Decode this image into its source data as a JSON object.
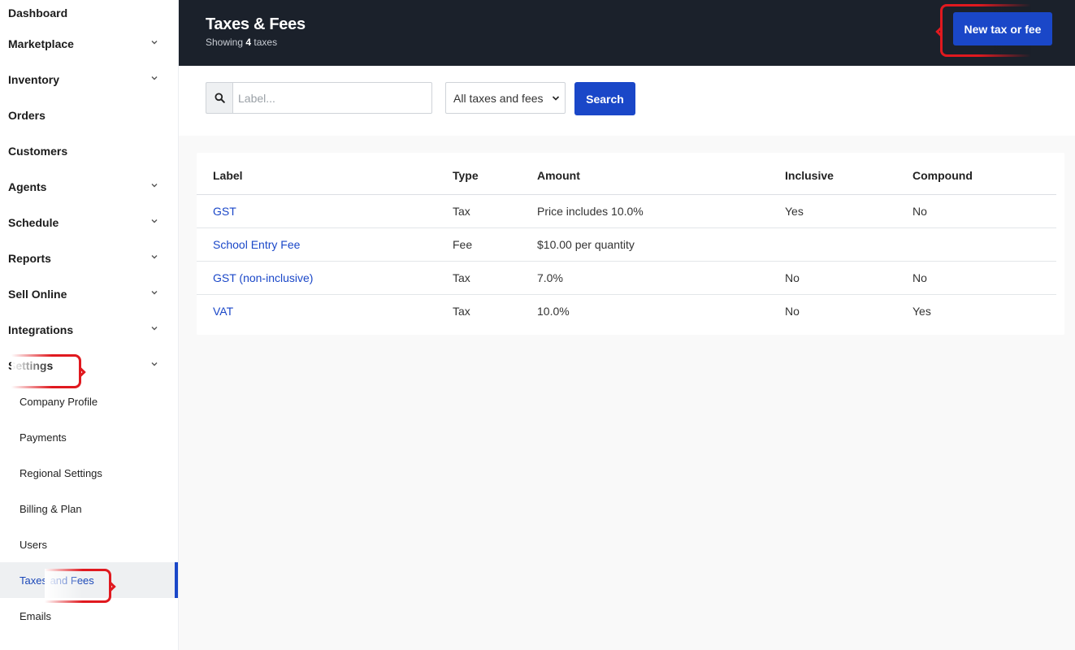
{
  "sidebar": {
    "items": [
      {
        "label": "Dashboard",
        "has_chevron": false
      },
      {
        "label": "Marketplace",
        "has_chevron": true
      },
      {
        "label": "Inventory",
        "has_chevron": true
      },
      {
        "label": "Orders",
        "has_chevron": false
      },
      {
        "label": "Customers",
        "has_chevron": false
      },
      {
        "label": "Agents",
        "has_chevron": true
      },
      {
        "label": "Schedule",
        "has_chevron": true
      },
      {
        "label": "Reports",
        "has_chevron": true
      },
      {
        "label": "Sell Online",
        "has_chevron": true
      },
      {
        "label": "Integrations",
        "has_chevron": true
      },
      {
        "label": "Settings",
        "has_chevron": true
      }
    ],
    "settings_sub": [
      {
        "label": "Company Profile"
      },
      {
        "label": "Payments"
      },
      {
        "label": "Regional Settings"
      },
      {
        "label": "Billing & Plan"
      },
      {
        "label": "Users"
      },
      {
        "label": "Taxes and Fees",
        "active": true
      },
      {
        "label": "Emails"
      }
    ]
  },
  "header": {
    "title": "Taxes & Fees",
    "subtitle_prefix": "Showing",
    "count": "4",
    "subtitle_suffix": "taxes",
    "new_button": "New tax or fee"
  },
  "filters": {
    "search_placeholder": "Label...",
    "search_value": "",
    "select_value": "All taxes and fees",
    "search_button": "Search"
  },
  "table": {
    "columns": [
      "Label",
      "Type",
      "Amount",
      "Inclusive",
      "Compound"
    ],
    "rows": [
      {
        "label": "GST",
        "type": "Tax",
        "amount": "Price includes 10.0%",
        "inclusive": "Yes",
        "compound": "No"
      },
      {
        "label": "School Entry Fee",
        "type": "Fee",
        "amount": "$10.00 per quantity",
        "inclusive": "",
        "compound": ""
      },
      {
        "label": "GST (non-inclusive)",
        "type": "Tax",
        "amount": "7.0%",
        "inclusive": "No",
        "compound": "No"
      },
      {
        "label": "VAT",
        "type": "Tax",
        "amount": "10.0%",
        "inclusive": "No",
        "compound": "Yes"
      }
    ]
  },
  "colors": {
    "accent": "#1a47c8",
    "header_bg": "#1b212b",
    "annotation": "#e0191f"
  }
}
